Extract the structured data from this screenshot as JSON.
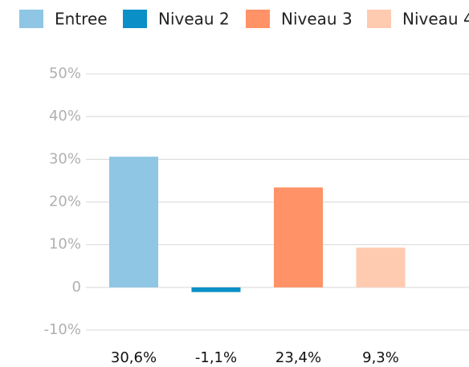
{
  "chart_data": {
    "type": "bar",
    "series": [
      {
        "name": "Entree",
        "color": "#8ec6e4",
        "values": [
          30.6
        ],
        "value_labels": [
          "30,6%"
        ]
      },
      {
        "name": "Niveau 2",
        "color": "#0a8fc6",
        "values": [
          -1.1
        ],
        "value_labels": [
          "-1,1%"
        ]
      },
      {
        "name": "Niveau 3",
        "color": "#ff9266",
        "values": [
          23.4
        ],
        "value_labels": [
          "23,4%"
        ]
      },
      {
        "name": "Niveau 4",
        "color": "#ffcbb0",
        "values": [
          9.3
        ],
        "value_labels": [
          "9,3%"
        ]
      }
    ],
    "ylim": [
      -10,
      50
    ],
    "yticks": [
      {
        "value": -10,
        "label": "-10%"
      },
      0,
      {
        "value": 10,
        "label": "10%"
      },
      {
        "value": 20,
        "label": "20%"
      },
      {
        "value": 30,
        "label": "30%"
      },
      {
        "value": 40,
        "label": "40%"
      },
      {
        "value": 50,
        "label": "50%"
      }
    ],
    "grid": true,
    "legend": "top"
  }
}
